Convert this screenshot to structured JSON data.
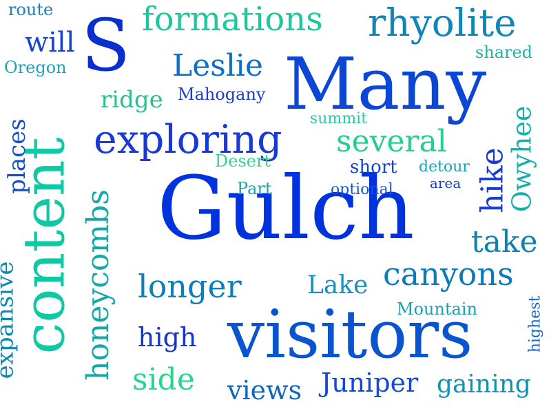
{
  "words": [
    {
      "text": "Gulch",
      "color": "#0033dd"
    },
    {
      "text": "visitors",
      "color": "#0a54d0"
    },
    {
      "text": "Many",
      "color": "#0b46d4"
    },
    {
      "text": "content",
      "color": "#10c8a4"
    },
    {
      "text": "S",
      "color": "#0b2fcf"
    },
    {
      "text": "exploring",
      "color": "#1838d8"
    },
    {
      "text": "rhyolite",
      "color": "#0e86b8"
    },
    {
      "text": "formations",
      "color": "#1ec79c"
    },
    {
      "text": "honeycombs",
      "color": "#14a8a8"
    },
    {
      "text": "canyons",
      "color": "#0c7bb8"
    },
    {
      "text": "longer",
      "color": "#0d7fbb"
    },
    {
      "text": "several",
      "color": "#22d08e"
    },
    {
      "text": "take",
      "color": "#0b82b0"
    },
    {
      "text": "Leslie",
      "color": "#0d6fc6"
    },
    {
      "text": "Juniper",
      "color": "#1448d6"
    },
    {
      "text": "gaining",
      "color": "#0f93b4"
    },
    {
      "text": "side",
      "color": "#25d68c"
    },
    {
      "text": "views",
      "color": "#0d69c0"
    },
    {
      "text": "high",
      "color": "#1435d0"
    },
    {
      "text": "will",
      "color": "#1544d2"
    },
    {
      "text": "Owyhee",
      "color": "#16b0aa"
    },
    {
      "text": "hike",
      "color": "#1a3bd4"
    },
    {
      "text": "Lake",
      "color": "#1b8ec0"
    },
    {
      "text": "ridge",
      "color": "#2bbf8e"
    },
    {
      "text": "expansive",
      "color": "#0b8ab5"
    },
    {
      "text": "places",
      "color": "#1450ce"
    },
    {
      "text": "Mahogany",
      "color": "#1b3ad0"
    },
    {
      "text": "Mountain",
      "color": "#16a0b0"
    },
    {
      "text": "Desert",
      "color": "#2fd68a"
    },
    {
      "text": "short",
      "color": "#1545cc"
    },
    {
      "text": "Oregon",
      "color": "#1da1b8"
    },
    {
      "text": "route",
      "color": "#1a80b8"
    },
    {
      "text": "shared",
      "color": "#1fb3a4"
    },
    {
      "text": "summit",
      "color": "#2cc9a0"
    },
    {
      "text": "detour",
      "color": "#17a4b4"
    },
    {
      "text": "Part",
      "color": "#1ea3aa"
    },
    {
      "text": "optional",
      "color": "#1a56d2"
    },
    {
      "text": "area",
      "color": "#163fd0"
    },
    {
      "text": "highest",
      "color": "#1864c4"
    }
  ]
}
